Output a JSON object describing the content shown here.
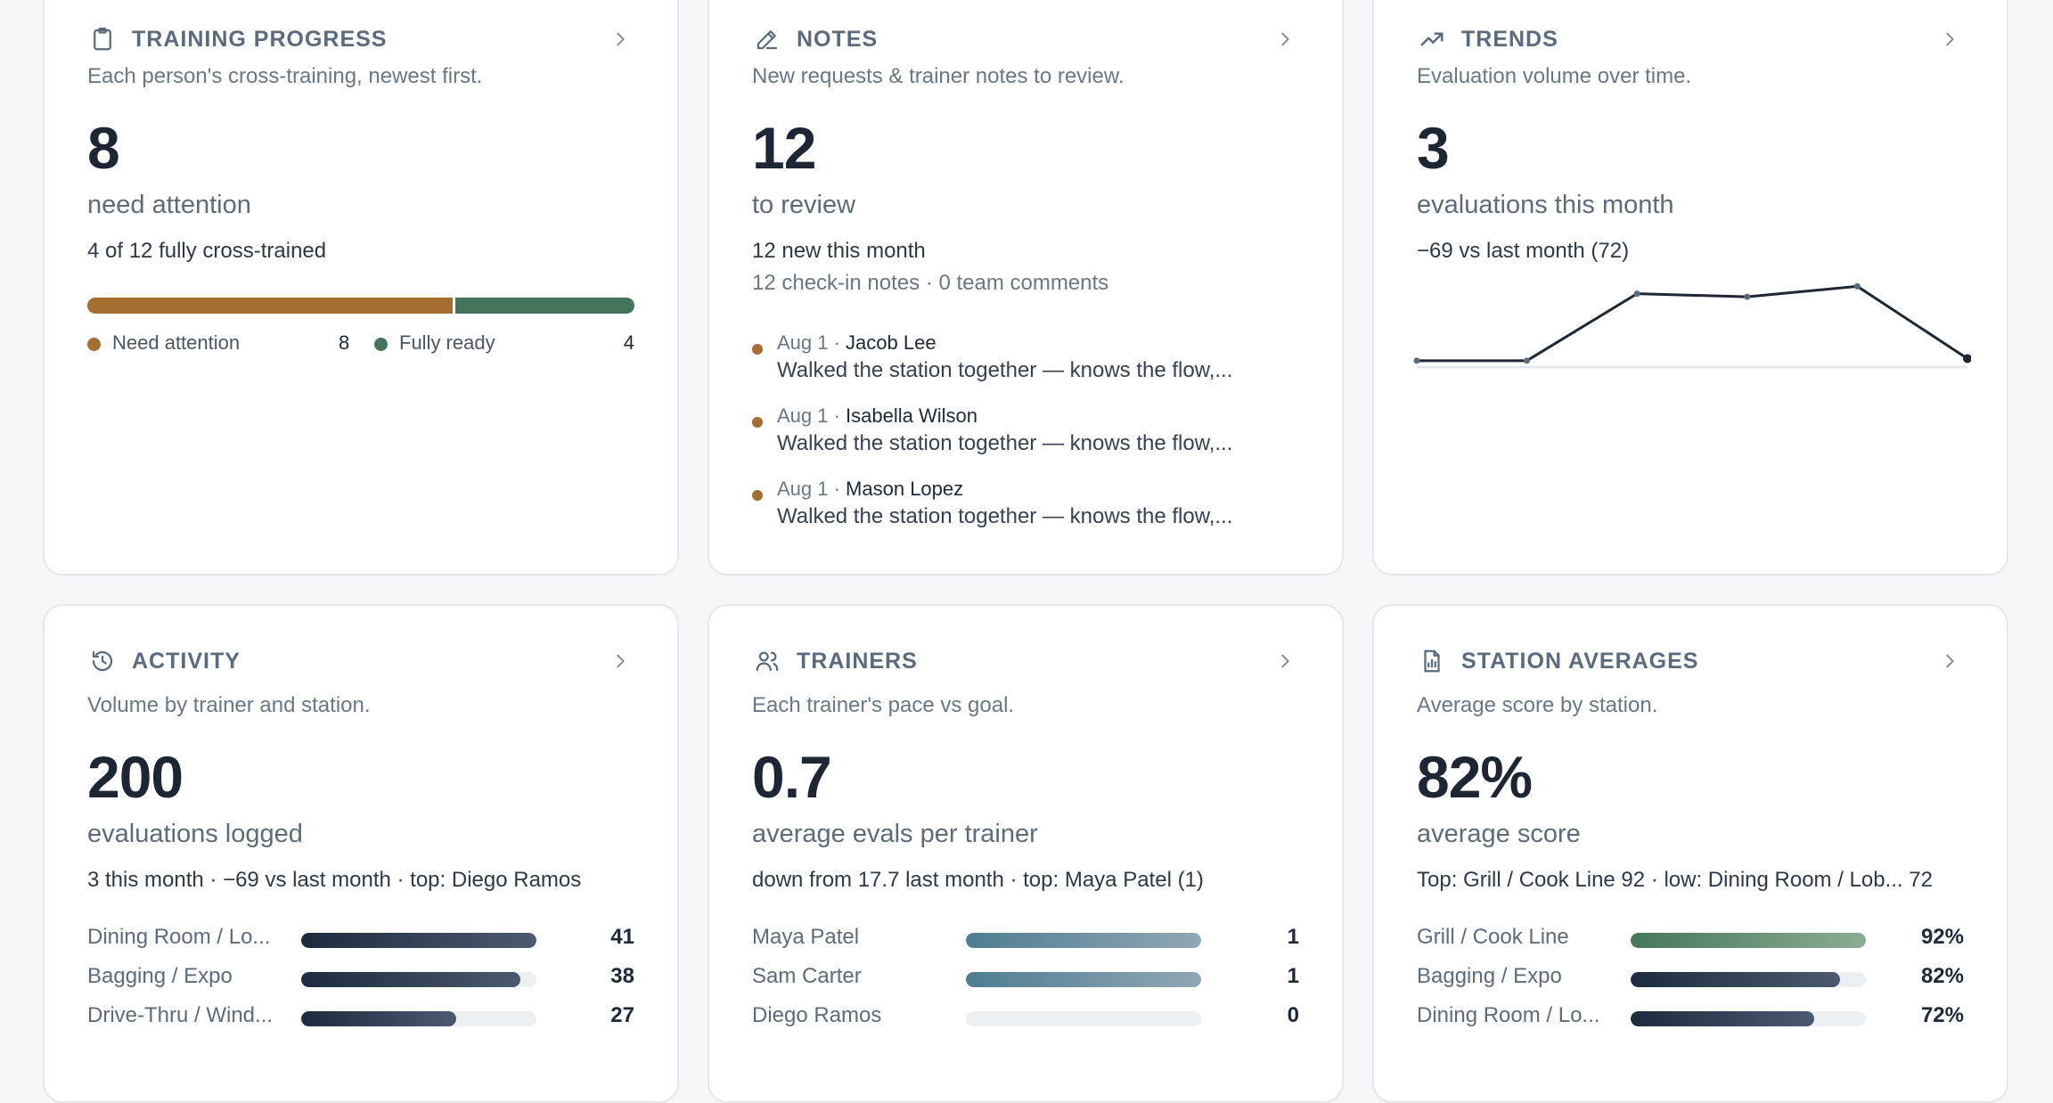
{
  "colors": {
    "attention": "#a36e30",
    "ready": "#44745b",
    "navy": "#1d2b3f",
    "teal": "#4f7d92",
    "green": "#46775b"
  },
  "training": {
    "title": "TRAINING PROGRESS",
    "icon": "clipboard-icon",
    "subtitle": "Each person's cross-training, newest first.",
    "big": "8",
    "big_label": "need attention",
    "summary": "4 of 12 fully cross-trained",
    "attention_fraction": 0.667,
    "legend": [
      {
        "label": "Need attention",
        "count": "8"
      },
      {
        "label": "Fully ready",
        "count": "4"
      }
    ]
  },
  "notes": {
    "title": "NOTES",
    "icon": "pencil-icon",
    "subtitle": "New requests & trainer notes to review.",
    "big": "12",
    "big_label": "to review",
    "line1": "12 new this month",
    "line2": "12 check-in notes · 0 team comments",
    "items": [
      {
        "date": "Aug 1 · ",
        "name": "Jacob Lee",
        "text": "Walked the station together — knows the flow,..."
      },
      {
        "date": "Aug 1 · ",
        "name": "Isabella Wilson",
        "text": "Walked the station together — knows the flow,..."
      },
      {
        "date": "Aug 1 · ",
        "name": "Mason Lopez",
        "text": "Walked the station together — knows the flow,..."
      }
    ]
  },
  "trends": {
    "title": "TRENDS",
    "icon": "trending-up-icon",
    "subtitle": "Evaluation volume over time.",
    "big": "3",
    "big_label": "evaluations this month",
    "line1": "−69 vs last month (72)"
  },
  "chart_data": {
    "type": "line",
    "series": [
      {
        "values": [
          1,
          1,
          65,
          62,
          72,
          3
        ]
      }
    ],
    "ylim": [
      0,
      80
    ]
  },
  "activity": {
    "title": "ACTIVITY",
    "icon": "history-icon",
    "subtitle": "Volume by trainer and station.",
    "big": "200",
    "big_label": "evaluations logged",
    "line1": "3 this month · −69 vs last month · top: Diego Ramos",
    "rows": [
      {
        "label": "Dining Room / Lo...",
        "value": "41",
        "fraction": 1.0
      },
      {
        "label": "Bagging / Expo",
        "value": "38",
        "fraction": 0.93
      },
      {
        "label": "Drive-Thru / Wind...",
        "value": "27",
        "fraction": 0.66
      }
    ]
  },
  "trainers": {
    "title": "TRAINERS",
    "icon": "users-icon",
    "subtitle": "Each trainer's pace vs goal.",
    "big": "0.7",
    "big_label": "average evals per trainer",
    "line1": "down from 17.7 last month · top: Maya Patel (1)",
    "rows": [
      {
        "label": "Maya Patel",
        "value": "1",
        "fraction": 1.0
      },
      {
        "label": "Sam Carter",
        "value": "1",
        "fraction": 1.0
      },
      {
        "label": "Diego Ramos",
        "value": "0",
        "fraction": 0
      }
    ]
  },
  "stations": {
    "title": "STATION AVERAGES",
    "icon": "report-chart-icon",
    "subtitle": "Average score by station.",
    "big": "82%",
    "big_label": "average score",
    "line1": "Top: Grill / Cook Line 92 · low: Dining Room / Lob... 72",
    "rows": [
      {
        "label": "Grill / Cook Line",
        "value": "92%",
        "fraction": 1.0
      },
      {
        "label": "Bagging / Expo",
        "value": "82%",
        "fraction": 0.89
      },
      {
        "label": "Dining Room / Lo...",
        "value": "72%",
        "fraction": 0.78
      }
    ]
  }
}
